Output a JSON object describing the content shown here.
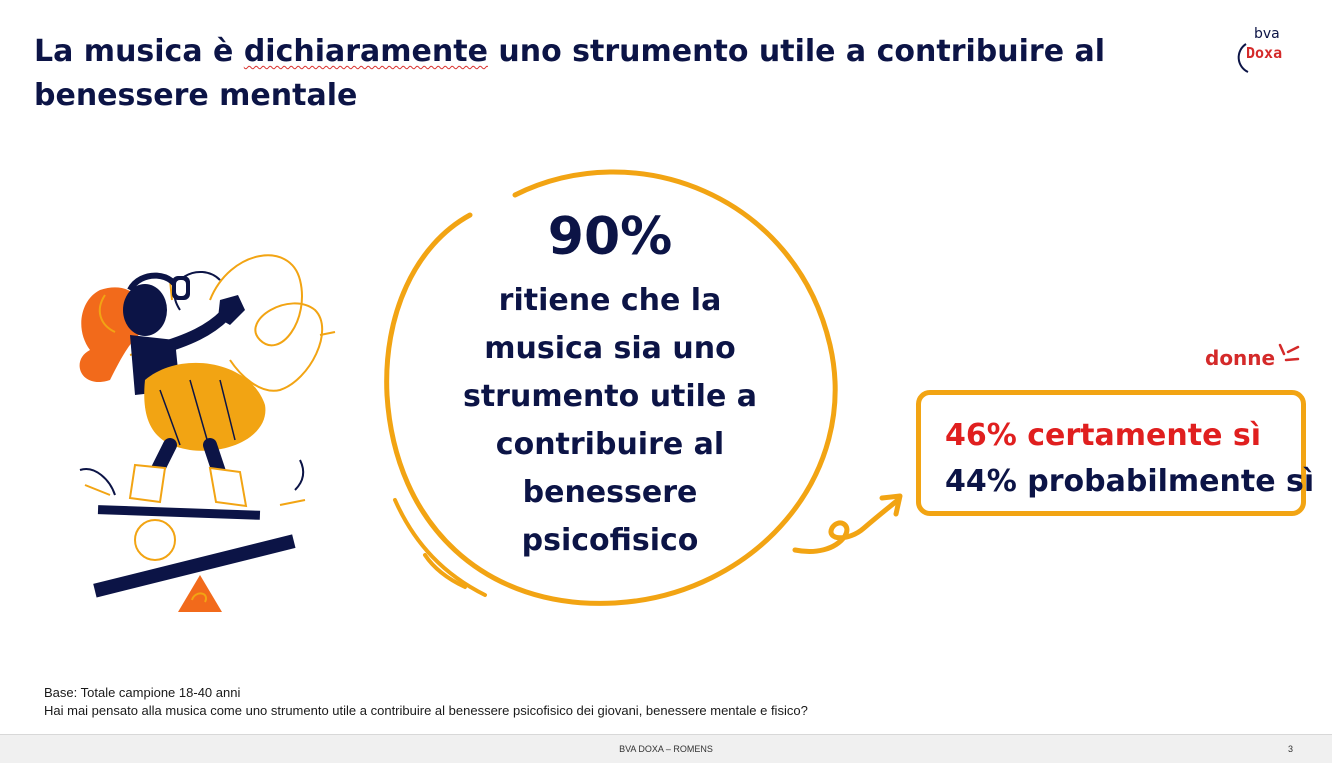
{
  "slide": {
    "title_part1": "La musica è ",
    "title_underlined": "dichiaramente",
    "title_part2": " uno strumento utile a contribuire al benessere mentale"
  },
  "logo": {
    "top": "bva",
    "bottom": "Doxa"
  },
  "circle": {
    "stat": "90%",
    "lines": [
      "ritiene che la",
      "musica sia uno",
      "strumento utile a",
      "contribuire al",
      "benessere",
      "psicofisico"
    ]
  },
  "callout": {
    "label": "donne",
    "line1": "46% certamente sì",
    "line2": "44% probabilmente sì"
  },
  "notes": {
    "base": "Base: Totale campione 18-40 anni",
    "question": "Hai mai  pensato alla musica come uno strumento utile a contribuire al benessere psicofisico dei giovani, benessere mentale e fisico?"
  },
  "footer": {
    "text": "BVA DOXA – ROMENS",
    "page": "3"
  },
  "colors": {
    "navy": "#0c1446",
    "orange": "#f2a413",
    "red": "#e01f1f"
  }
}
